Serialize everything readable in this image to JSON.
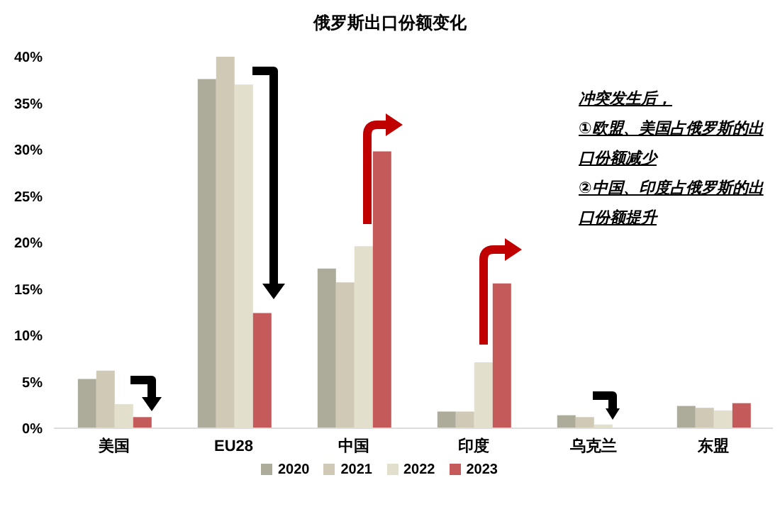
{
  "chart_data": {
    "type": "bar",
    "title": "俄罗斯出口份额变化",
    "categories": [
      "美国",
      "EU28",
      "中国",
      "印度",
      "乌克兰",
      "东盟"
    ],
    "series": [
      {
        "name": "2020",
        "color": "#adab9a",
        "values": [
          5.3,
          37.6,
          17.2,
          1.8,
          1.4,
          2.4
        ]
      },
      {
        "name": "2021",
        "color": "#d0c9b6",
        "values": [
          6.2,
          40.0,
          15.7,
          1.8,
          1.2,
          2.2
        ]
      },
      {
        "name": "2022",
        "color": "#e2dfcd",
        "values": [
          2.6,
          37.0,
          19.6,
          7.1,
          0.4,
          1.9
        ]
      },
      {
        "name": "2023",
        "color": "#c55a5a",
        "values": [
          1.2,
          12.4,
          29.8,
          15.6,
          null,
          2.7
        ]
      }
    ],
    "ylim": [
      0,
      40
    ],
    "yticks": [
      {
        "value": 0,
        "label": "0%"
      },
      {
        "value": 5,
        "label": "5%"
      },
      {
        "value": 10,
        "label": "10%"
      },
      {
        "value": 15,
        "label": "15%"
      },
      {
        "value": 20,
        "label": "20%"
      },
      {
        "value": 25,
        "label": "25%"
      },
      {
        "value": 30,
        "label": "30%"
      },
      {
        "value": 35,
        "label": "35%"
      },
      {
        "value": 40,
        "label": "40%"
      }
    ],
    "annotations": [
      "冲突发生后，",
      "①欧盟、美国占俄罗斯的出口份额减少",
      "②中国、印度占俄罗斯的出口份额提升"
    ],
    "grid": false,
    "legend": "bottom"
  }
}
